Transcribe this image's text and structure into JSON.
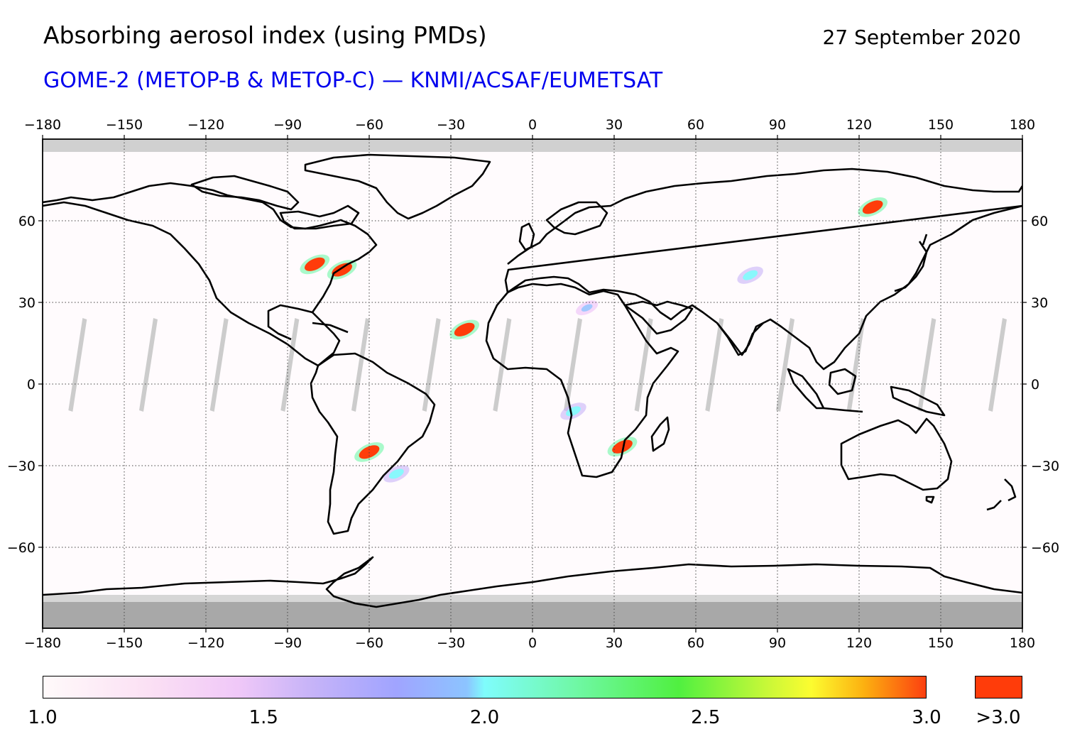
{
  "header": {
    "title": "Absorbing aerosol index (using PMDs)",
    "date": "27 September 2020",
    "subtitle": "GOME-2 (METOP-B & METOP-C) — KNMI/ACSAF/EUMETSAT"
  },
  "map": {
    "projection": "equirectangular",
    "lon_range": [
      -180,
      180
    ],
    "lat_range": [
      -90,
      90
    ],
    "lon_ticks": [
      "−180",
      "−150",
      "−120",
      "−90",
      "−60",
      "−30",
      "0",
      "30",
      "60",
      "90",
      "120",
      "150",
      "180"
    ],
    "lon_tick_values": [
      -180,
      -150,
      -120,
      -90,
      -60,
      -30,
      0,
      30,
      60,
      90,
      120,
      150,
      180
    ],
    "lat_ticks": [
      "60",
      "30",
      "0",
      "−30",
      "−60"
    ],
    "lat_tick_values": [
      60,
      30,
      0,
      -30,
      -60
    ],
    "grid": "dotted",
    "colors": {
      "no_data_north": "#d0d0d0",
      "no_data_south": "#a8a8a8",
      "swath_gap": "#cccccc",
      "coastline": "#000000",
      "high_aerosol": "#ff3c0a"
    },
    "aerosol_plumes": [
      {
        "lon": -80,
        "lat": 44,
        "level": "high"
      },
      {
        "lon": -70,
        "lat": 42,
        "level": "high"
      },
      {
        "lon": -25,
        "lat": 20,
        "level": "high"
      },
      {
        "lon": 125,
        "lat": 65,
        "level": "high"
      },
      {
        "lon": 33,
        "lat": -23,
        "level": "high"
      },
      {
        "lon": -60,
        "lat": -25,
        "level": "high"
      },
      {
        "lon": 15,
        "lat": -10,
        "level": "medium"
      },
      {
        "lon": -50,
        "lat": -33,
        "level": "medium"
      },
      {
        "lon": 20,
        "lat": 28,
        "level": "low"
      },
      {
        "lon": 80,
        "lat": 40,
        "level": "medium"
      }
    ]
  },
  "colorbar": {
    "min": 1.0,
    "max": 3.0,
    "labels": [
      "1.0",
      "1.5",
      "2.0",
      "2.5",
      "3.0"
    ],
    "label_values": [
      1.0,
      1.5,
      2.0,
      2.5,
      3.0
    ],
    "overflow_label": ">3.0",
    "overflow_color": "#ff3c0a"
  }
}
